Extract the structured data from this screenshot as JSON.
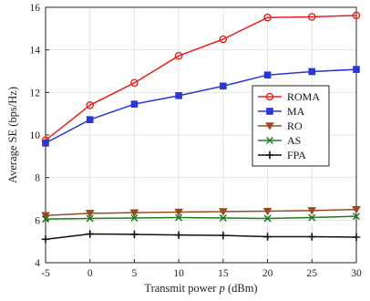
{
  "chart_data": {
    "type": "line",
    "title": "",
    "xlabel": "Transmit power p (dBm)",
    "ylabel": "Average SE (bps/Hz)",
    "x": [
      -5,
      0,
      5,
      10,
      15,
      20,
      25,
      30
    ],
    "x_tick_labels": [
      "-5",
      "0",
      "5",
      "10",
      "15",
      "20",
      "25",
      "30"
    ],
    "y_tick_labels": [
      "4",
      "6",
      "8",
      "10",
      "12",
      "14",
      "16"
    ],
    "xlim": [
      -5,
      30
    ],
    "ylim": [
      4,
      16
    ],
    "grid": true,
    "legend_position": "right",
    "series": [
      {
        "name": "ROMA",
        "color": "#e8201e",
        "marker": "circle",
        "values": [
          9.75,
          11.4,
          12.45,
          13.72,
          14.5,
          15.52,
          15.55,
          15.62
        ]
      },
      {
        "name": "MA",
        "color": "#2a36d6",
        "marker": "square",
        "values": [
          9.62,
          10.72,
          11.45,
          11.85,
          12.3,
          12.82,
          12.98,
          13.08
        ]
      },
      {
        "name": "RO",
        "color": "#9a4a22",
        "marker": "triangle-down",
        "values": [
          6.22,
          6.32,
          6.35,
          6.38,
          6.4,
          6.42,
          6.45,
          6.5
        ]
      },
      {
        "name": "AS",
        "color": "#1f7a1f",
        "marker": "x",
        "values": [
          6.05,
          6.08,
          6.1,
          6.12,
          6.1,
          6.08,
          6.12,
          6.18
        ]
      },
      {
        "name": "FPA",
        "color": "#111111",
        "marker": "plus",
        "values": [
          5.1,
          5.35,
          5.33,
          5.3,
          5.28,
          5.22,
          5.22,
          5.2
        ]
      }
    ]
  }
}
